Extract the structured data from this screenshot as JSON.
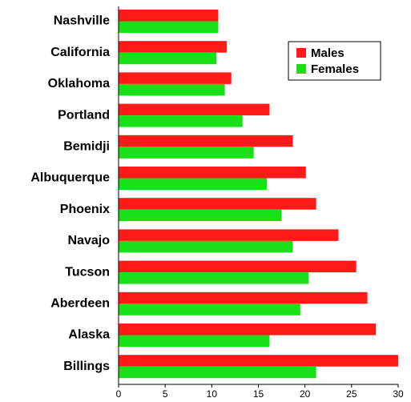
{
  "chart_data": {
    "type": "bar",
    "orientation": "horizontal",
    "categories": [
      "Nashville",
      "California",
      "Oklahoma",
      "Portland",
      "Bemidji",
      "Albuquerque",
      "Phoenix",
      "Navajo",
      "Tucson",
      "Aberdeen",
      "Alaska",
      "Billings"
    ],
    "series": [
      {
        "name": "Males",
        "color": "#ff1a1a",
        "values": [
          10.7,
          11.6,
          12.1,
          16.2,
          18.7,
          20.1,
          21.2,
          23.6,
          25.5,
          26.7,
          27.6,
          30.0
        ]
      },
      {
        "name": "Females",
        "color": "#1ae01a",
        "values": [
          10.7,
          10.5,
          11.4,
          13.3,
          14.5,
          15.9,
          17.5,
          18.7,
          20.4,
          19.5,
          16.2,
          21.2
        ]
      }
    ],
    "xlim": [
      0,
      30
    ],
    "xticks": [
      0,
      5,
      10,
      15,
      20,
      25,
      30
    ],
    "grid": false,
    "legend": "upper right"
  }
}
